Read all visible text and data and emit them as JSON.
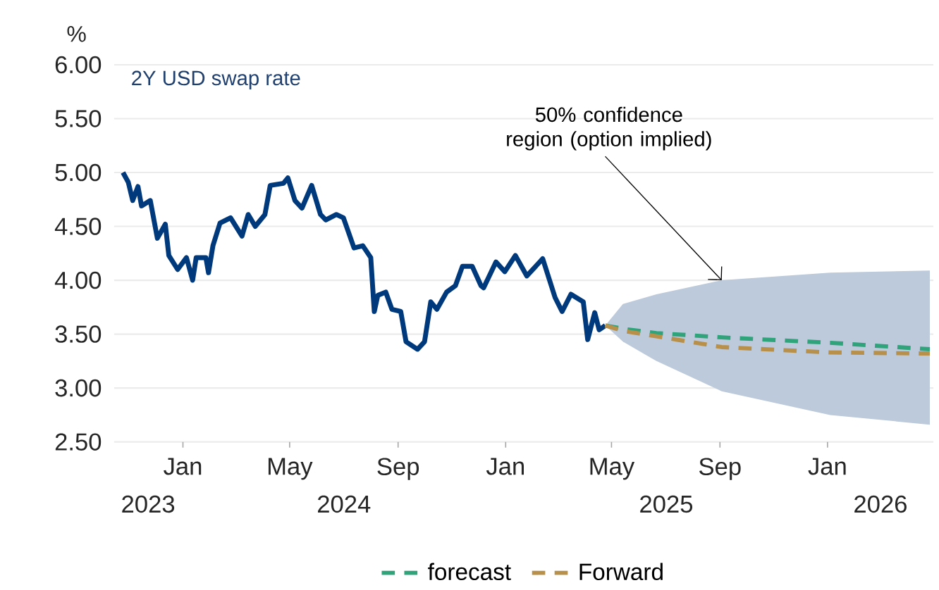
{
  "chart_data": {
    "type": "line",
    "title": "2Y USD swap rate",
    "ylabel": "%",
    "xlim": [
      "2023-10-15",
      "2026-05-01"
    ],
    "xticks": [
      {
        "value": "2024-01-01",
        "label": "Jan"
      },
      {
        "value": "2024-05-01",
        "label": "May"
      },
      {
        "value": "2024-09-01",
        "label": "Sep"
      },
      {
        "value": "2025-01-01",
        "label": "Jan"
      },
      {
        "value": "2025-05-01",
        "label": "May"
      },
      {
        "value": "2025-09-01",
        "label": "Sep"
      },
      {
        "value": "2026-01-01",
        "label": "Jan"
      }
    ],
    "ylim": [
      2.5,
      6.0
    ],
    "yticks": [
      {
        "value": 2.5,
        "label": "2.50"
      },
      {
        "value": 3.0,
        "label": "3.00"
      },
      {
        "value": 3.5,
        "label": "3.50"
      },
      {
        "value": 4.0,
        "label": "4.00"
      },
      {
        "value": 4.5,
        "label": "4.50"
      },
      {
        "value": 5.0,
        "label": "5.00"
      },
      {
        "value": 5.5,
        "label": "5.50"
      },
      {
        "value": 6.0,
        "label": "6.00"
      }
    ],
    "grid": "y",
    "legend": "bottom",
    "series": [
      {
        "color": "#003a7d",
        "line_style": "solid",
        "x": [
          "2023-10-25",
          "2023-10-31",
          "2023-11-05",
          "2023-11-11",
          "2023-11-15",
          "2023-11-25",
          "2023-12-03",
          "2023-12-12",
          "2023-12-16",
          "2023-12-26",
          "2024-01-05",
          "2024-01-12",
          "2024-01-16",
          "2024-01-27",
          "2024-01-30",
          "2024-02-04",
          "2024-02-12",
          "2024-02-24",
          "2024-03-08",
          "2024-03-15",
          "2024-03-23",
          "2024-04-03",
          "2024-04-09",
          "2024-04-24",
          "2024-04-29",
          "2024-05-07",
          "2024-05-15",
          "2024-05-26",
          "2024-06-05",
          "2024-06-11",
          "2024-06-23",
          "2024-07-01",
          "2024-07-13",
          "2024-07-23",
          "2024-08-01",
          "2024-08-05",
          "2024-08-09",
          "2024-08-18",
          "2024-08-25",
          "2024-09-04",
          "2024-09-10",
          "2024-09-23",
          "2024-10-01",
          "2024-10-08",
          "2024-10-15",
          "2024-10-26",
          "2024-11-05",
          "2024-11-13",
          "2024-11-24",
          "2024-12-04",
          "2024-12-07",
          "2024-12-21",
          "2024-12-31",
          "2025-01-12",
          "2025-01-25",
          "2025-02-12",
          "2025-02-26",
          "2025-03-06",
          "2025-03-16",
          "2025-03-30",
          "2025-04-04",
          "2025-04-12",
          "2025-04-17",
          "2025-04-24"
        ],
        "values": [
          5.0,
          4.91,
          4.74,
          4.87,
          4.69,
          4.74,
          4.39,
          4.52,
          4.23,
          4.1,
          4.21,
          4.0,
          4.21,
          4.21,
          4.07,
          4.32,
          4.53,
          4.58,
          4.41,
          4.61,
          4.5,
          4.61,
          4.88,
          4.9,
          4.95,
          4.74,
          4.67,
          4.88,
          4.61,
          4.56,
          4.61,
          4.58,
          4.3,
          4.32,
          4.21,
          3.71,
          3.86,
          3.89,
          3.73,
          3.71,
          3.43,
          3.36,
          3.43,
          3.8,
          3.73,
          3.89,
          3.95,
          4.13,
          4.13,
          3.95,
          3.93,
          4.17,
          4.08,
          4.23,
          4.04,
          4.2,
          3.84,
          3.71,
          3.87,
          3.8,
          3.45,
          3.7,
          3.54,
          3.58
        ]
      },
      {
        "name": "forecast",
        "color": "#2fa37a",
        "line_style": "dashed",
        "x": [
          "2025-04-24",
          "2025-05-14",
          "2025-06-21",
          "2025-09-03",
          "2026-01-04",
          "2026-04-27"
        ],
        "values": [
          3.58,
          3.55,
          3.51,
          3.47,
          3.42,
          3.36
        ]
      },
      {
        "name": "Forward",
        "color": "#b8904a",
        "line_style": "dashed",
        "x": [
          "2025-04-24",
          "2025-05-14",
          "2025-06-21",
          "2025-09-03",
          "2026-01-04",
          "2026-04-27"
        ],
        "values": [
          3.58,
          3.53,
          3.48,
          3.38,
          3.33,
          3.32
        ],
        "lower": [
          3.58,
          3.43,
          3.25,
          2.97,
          2.75,
          2.66
        ],
        "upper": [
          3.58,
          3.78,
          3.87,
          4.0,
          4.07,
          4.09
        ]
      }
    ],
    "annotations": [
      {
        "text": "50% confidence region (option implied)",
        "x": "2025-09-03",
        "y": 4.0
      },
      "2023",
      "2024",
      "2025",
      "2026"
    ]
  }
}
